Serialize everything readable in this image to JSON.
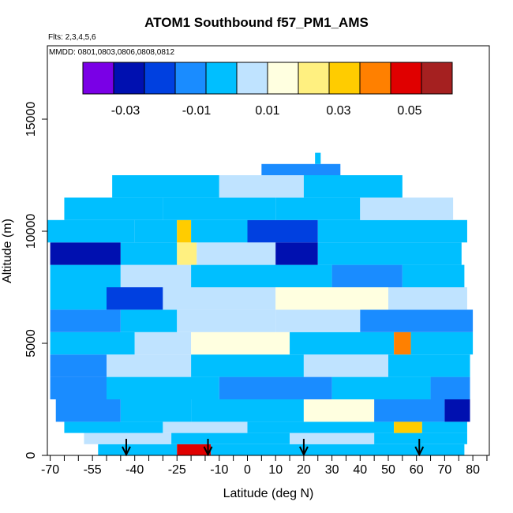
{
  "chart_data": {
    "type": "heatmap",
    "title": "ATOM1 Southbound f57_PM1_AMS",
    "flights_note": "Flts: 2,3,4,5,6",
    "dates_note": "MMDD: 0801,0803,0806,0808,0812",
    "xlabel": "Latitude (deg N)",
    "ylabel": "Altitude (m)",
    "xlim": [
      -72,
      85
    ],
    "ylim": [
      0,
      17500
    ],
    "x_ticks": [
      -70,
      -55,
      -40,
      -25,
      -10,
      0,
      10,
      20,
      30,
      40,
      50,
      60,
      70,
      80
    ],
    "x_tick_labels": [
      "-70",
      "-55",
      "-40",
      "-25",
      "-10",
      "0",
      "10",
      "20",
      "30",
      "40",
      "50",
      "60",
      "70",
      "80"
    ],
    "x_minor_ticks": [
      -65,
      -60,
      -50,
      -45,
      -35,
      -30,
      -20,
      -15,
      -5,
      5,
      15,
      25,
      35,
      45,
      55,
      65,
      75,
      85
    ],
    "y_ticks": [
      0,
      5000,
      10000,
      15000
    ],
    "y_tick_labels": [
      "0",
      "5000",
      "10000",
      "15000"
    ],
    "colorbar": {
      "range": [
        -0.042,
        0.062
      ],
      "ticks": [
        -0.03,
        -0.01,
        0.01,
        0.03,
        0.05
      ],
      "tick_labels": [
        "-0.03",
        "-0.01",
        "0.01",
        "0.03",
        "0.05"
      ],
      "colors": [
        "#7a00e6",
        "#0010b0",
        "#0040e0",
        "#1a8cff",
        "#00bfff",
        "#bfe3ff",
        "#ffffe0",
        "#fff080",
        "#ffcc00",
        "#ff8000",
        "#e00000",
        "#a52020"
      ]
    },
    "profile_arrows_lat": [
      -43,
      -14,
      20,
      61
    ],
    "altitude_bands": [
      {
        "alt": [
          0,
          500
        ],
        "x": [
          -53,
          77
        ],
        "segments": [
          [
            -53,
            -25,
            -0.005
          ],
          [
            -25,
            -13,
            0.045
          ],
          [
            -13,
            77,
            0.0
          ]
        ]
      },
      {
        "alt": [
          500,
          1000
        ],
        "x": [
          -58,
          78
        ],
        "segments": [
          [
            -58,
            -27,
            0.004
          ],
          [
            -27,
            15,
            0.001
          ],
          [
            15,
            45,
            0.006
          ],
          [
            45,
            78,
            -0.004
          ]
        ]
      },
      {
        "alt": [
          1000,
          1500
        ],
        "x": [
          -65,
          78
        ],
        "segments": [
          [
            -65,
            -30,
            -0.006
          ],
          [
            -30,
            0,
            0.003
          ],
          [
            0,
            52,
            -0.002
          ],
          [
            52,
            62,
            0.035
          ],
          [
            62,
            78,
            -0.004
          ]
        ]
      },
      {
        "alt": [
          1500,
          2500
        ],
        "x": [
          -68,
          79
        ],
        "segments": [
          [
            -68,
            -45,
            -0.01
          ],
          [
            -45,
            -20,
            -0.002
          ],
          [
            -20,
            20,
            0.001
          ],
          [
            20,
            45,
            0.014
          ],
          [
            45,
            70,
            -0.008
          ],
          [
            70,
            79,
            -0.025
          ]
        ]
      },
      {
        "alt": [
          2500,
          3500
        ],
        "x": [
          -70,
          79
        ],
        "segments": [
          [
            -70,
            -50,
            -0.015
          ],
          [
            -50,
            -10,
            -0.004
          ],
          [
            -10,
            30,
            -0.008
          ],
          [
            30,
            65,
            -0.003
          ],
          [
            65,
            79,
            -0.012
          ]
        ]
      },
      {
        "alt": [
          3500,
          4500
        ],
        "x": [
          -70,
          79
        ],
        "segments": [
          [
            -70,
            -50,
            -0.008
          ],
          [
            -50,
            -20,
            0.004
          ],
          [
            -20,
            20,
            -0.002
          ],
          [
            20,
            50,
            0.008
          ],
          [
            50,
            79,
            -0.006
          ]
        ]
      },
      {
        "alt": [
          4500,
          5500
        ],
        "x": [
          -70,
          80
        ],
        "segments": [
          [
            -70,
            -40,
            -0.006
          ],
          [
            -40,
            -20,
            0.002
          ],
          [
            -20,
            15,
            0.018
          ],
          [
            15,
            52,
            -0.004
          ],
          [
            52,
            58,
            0.04
          ],
          [
            58,
            80,
            -0.006
          ]
        ]
      },
      {
        "alt": [
          5500,
          6500
        ],
        "x": [
          -70,
          80
        ],
        "segments": [
          [
            -70,
            -45,
            -0.012
          ],
          [
            -45,
            -25,
            -0.004
          ],
          [
            -25,
            10,
            0.008
          ],
          [
            10,
            40,
            0.003
          ],
          [
            40,
            80,
            -0.01
          ]
        ]
      },
      {
        "alt": [
          6500,
          7500
        ],
        "x": [
          -70,
          78
        ],
        "segments": [
          [
            -70,
            -50,
            -0.003
          ],
          [
            -50,
            -30,
            -0.018
          ],
          [
            -30,
            10,
            0.004
          ],
          [
            10,
            50,
            0.01
          ],
          [
            50,
            78,
            0.002
          ]
        ]
      },
      {
        "alt": [
          7500,
          8500
        ],
        "x": [
          -70,
          77
        ],
        "segments": [
          [
            -70,
            -45,
            -0.006
          ],
          [
            -45,
            -20,
            0.005
          ],
          [
            -20,
            30,
            -0.004
          ],
          [
            30,
            55,
            -0.016
          ],
          [
            55,
            77,
            -0.004
          ]
        ]
      },
      {
        "alt": [
          8500,
          9500
        ],
        "x": [
          -70,
          76
        ],
        "segments": [
          [
            -70,
            -45,
            -0.03
          ],
          [
            -45,
            -25,
            -0.005
          ],
          [
            -25,
            -18,
            0.02
          ],
          [
            -18,
            10,
            0.002
          ],
          [
            10,
            25,
            -0.03
          ],
          [
            25,
            76,
            -0.006
          ]
        ]
      },
      {
        "alt": [
          9500,
          10500
        ],
        "x": [
          -72,
          78
        ],
        "segments": [
          [
            -72,
            -40,
            -0.006
          ],
          [
            -40,
            -25,
            -0.001
          ],
          [
            -25,
            -20,
            0.03
          ],
          [
            -20,
            0,
            -0.004
          ],
          [
            0,
            25,
            -0.02
          ],
          [
            25,
            78,
            -0.004
          ]
        ]
      },
      {
        "alt": [
          10500,
          11500
        ],
        "x": [
          -65,
          73
        ],
        "segments": [
          [
            -65,
            -30,
            -0.004
          ],
          [
            -30,
            10,
            0.001
          ],
          [
            10,
            40,
            -0.006
          ],
          [
            40,
            73,
            0.003
          ]
        ]
      },
      {
        "alt": [
          11500,
          12500
        ],
        "x": [
          -48,
          55
        ],
        "segments": [
          [
            -48,
            -10,
            -0.006
          ],
          [
            -10,
            20,
            0.003
          ],
          [
            20,
            55,
            -0.004
          ]
        ]
      },
      {
        "alt": [
          12500,
          13000
        ],
        "x": [
          5,
          33
        ],
        "segments": [
          [
            5,
            33,
            -0.008
          ]
        ]
      },
      {
        "alt": [
          13000,
          13500
        ],
        "x": [
          24,
          26
        ],
        "segments": [
          [
            24,
            26,
            0.0
          ]
        ]
      }
    ]
  }
}
